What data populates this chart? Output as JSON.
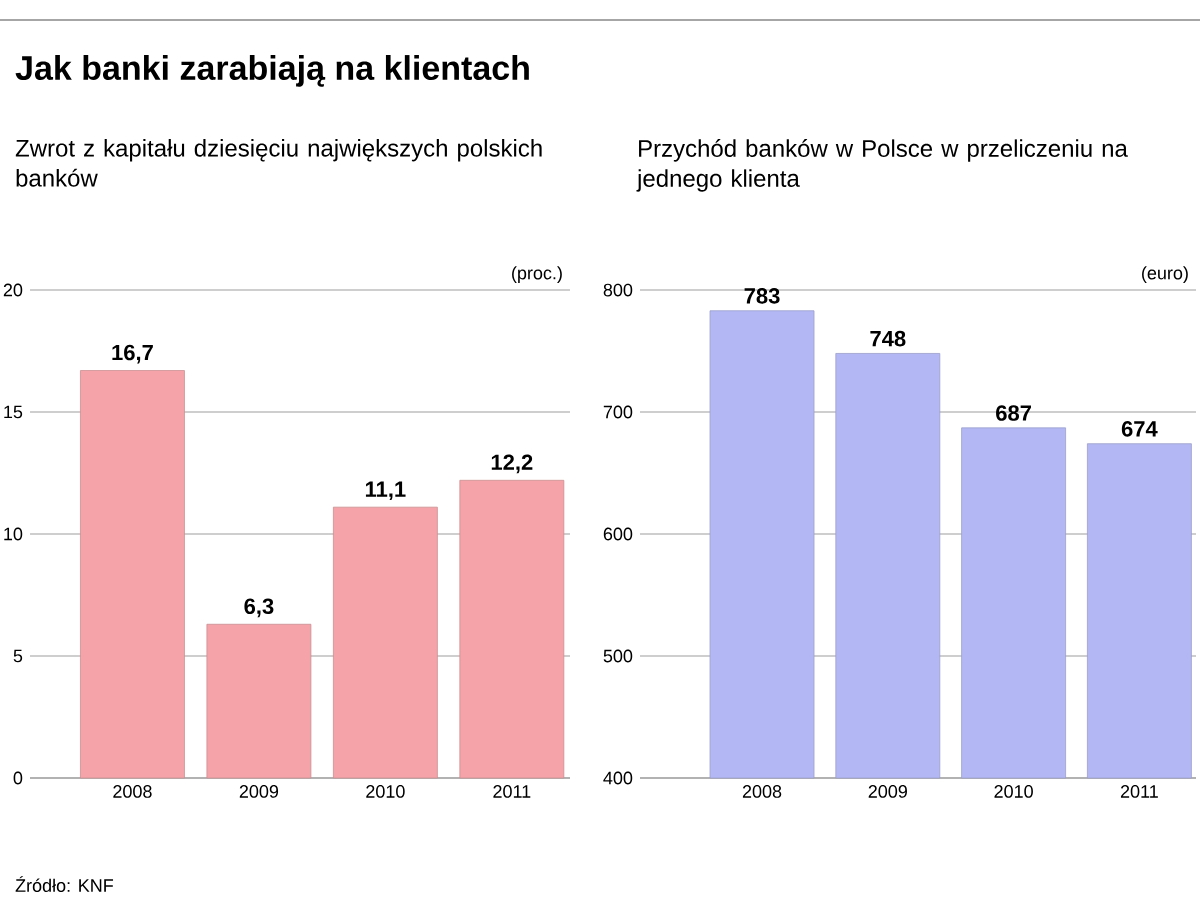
{
  "chart_data": [
    {
      "type": "bar",
      "title": "Jak banki zarabiają na klientach",
      "subtitle": "Zwrot z kapitału dziesięciu największych polskich banków",
      "ylabel": "(proc.)",
      "categories": [
        "2008",
        "2009",
        "2010",
        "2011"
      ],
      "values": [
        16.7,
        6.3,
        11.1,
        12.2
      ],
      "value_labels": [
        "16,7",
        "6,3",
        "11,1",
        "12,2"
      ],
      "color": "#f5a3a8",
      "ylim": [
        0,
        20
      ],
      "yticks": [
        0,
        5,
        10,
        15,
        20
      ],
      "grid": "y",
      "annotations": [
        "Źródło: KNF"
      ]
    },
    {
      "type": "bar",
      "subtitle": "Przychód banków w Polsce w przeliczeniu na jednego klienta",
      "ylabel": "(euro)",
      "categories": [
        "2008",
        "2009",
        "2010",
        "2011"
      ],
      "values": [
        783,
        748,
        687,
        674
      ],
      "data_labels": true,
      "color": "#b3b8f5",
      "ylim": [
        400,
        800
      ],
      "yticks": [
        400,
        500,
        600,
        700,
        800
      ],
      "grid": "y"
    }
  ]
}
